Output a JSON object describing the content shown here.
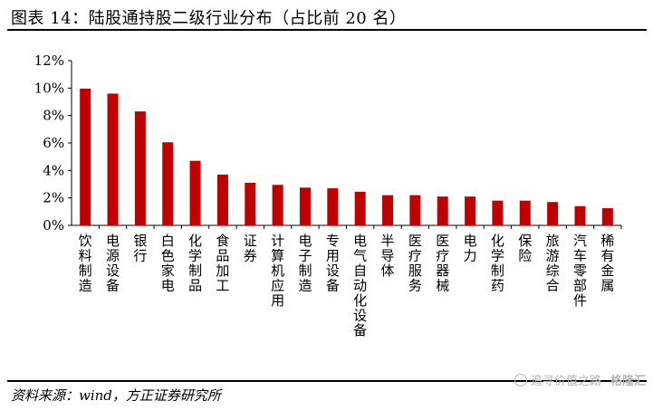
{
  "header": {
    "title": "图表 14：陆股通持股二级行业分布（占比前 20 名）"
  },
  "footer": {
    "source": "资料来源：wind，方正证券研究所"
  },
  "watermark": {
    "text": "追寻价值之路",
    "brand": "格隆汇"
  },
  "chart_data": {
    "type": "bar",
    "categories": [
      "饮料制造",
      "电源设备",
      "银行",
      "白色家电",
      "化学制品",
      "食品加工",
      "证券",
      "计算机应用",
      "电子制造",
      "专用设备",
      "电气自动化设备",
      "半导体",
      "医疗服务",
      "医疗器械",
      "电力",
      "化学制药",
      "保险",
      "旅游综合",
      "汽车零部件",
      "稀有金属"
    ],
    "values": [
      9.96,
      9.6,
      8.3,
      6.05,
      4.7,
      3.7,
      3.1,
      2.95,
      2.75,
      2.7,
      2.45,
      2.2,
      2.2,
      2.1,
      2.1,
      1.8,
      1.8,
      1.7,
      1.4,
      1.25
    ],
    "y_ticks": [
      "0%",
      "2%",
      "4%",
      "6%",
      "8%",
      "10%",
      "12%"
    ],
    "ylim": [
      0,
      12
    ],
    "bar_color": "#C00000",
    "grid": false,
    "legend": "none"
  }
}
